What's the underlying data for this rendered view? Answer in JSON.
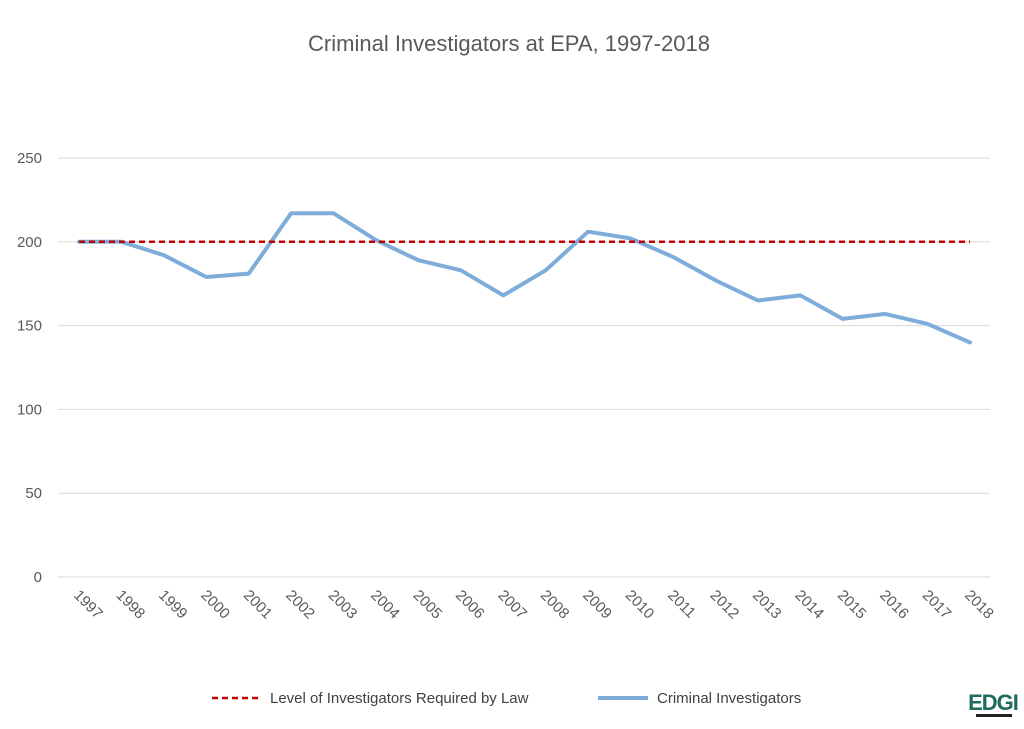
{
  "chart_data": {
    "type": "line",
    "title": "Criminal Investigators at EPA, 1997-2018",
    "categories": [
      "1997",
      "1998",
      "1999",
      "2000",
      "2001",
      "2002",
      "2003",
      "2004",
      "2005",
      "2006",
      "2007",
      "2008",
      "2009",
      "2010",
      "2011",
      "2012",
      "2013",
      "2014",
      "2015",
      "2016",
      "2017",
      "2018"
    ],
    "series": [
      {
        "name": "Level of Investigators Required by Law",
        "color": "#c00000",
        "style": "dashed",
        "values": [
          200,
          200,
          200,
          200,
          200,
          200,
          200,
          200,
          200,
          200,
          200,
          200,
          200,
          200,
          200,
          200,
          200,
          200,
          200,
          200,
          200,
          200
        ]
      },
      {
        "name": "Criminal Investigators",
        "color": "#7fadd9",
        "style": "solid",
        "values": [
          200,
          200,
          192,
          179,
          181,
          217,
          217,
          201,
          189,
          183,
          168,
          183,
          206,
          202,
          191,
          177,
          165,
          168,
          154,
          157,
          151,
          140
        ]
      }
    ],
    "yticks": [
      0,
      50,
      100,
      150,
      200,
      250
    ],
    "ylim": [
      0,
      250
    ],
    "xlabel": "",
    "ylabel": "",
    "grid": true,
    "legend_position": "bottom"
  },
  "logo": {
    "text": "EDGI",
    "color": "#1f6b5e"
  }
}
